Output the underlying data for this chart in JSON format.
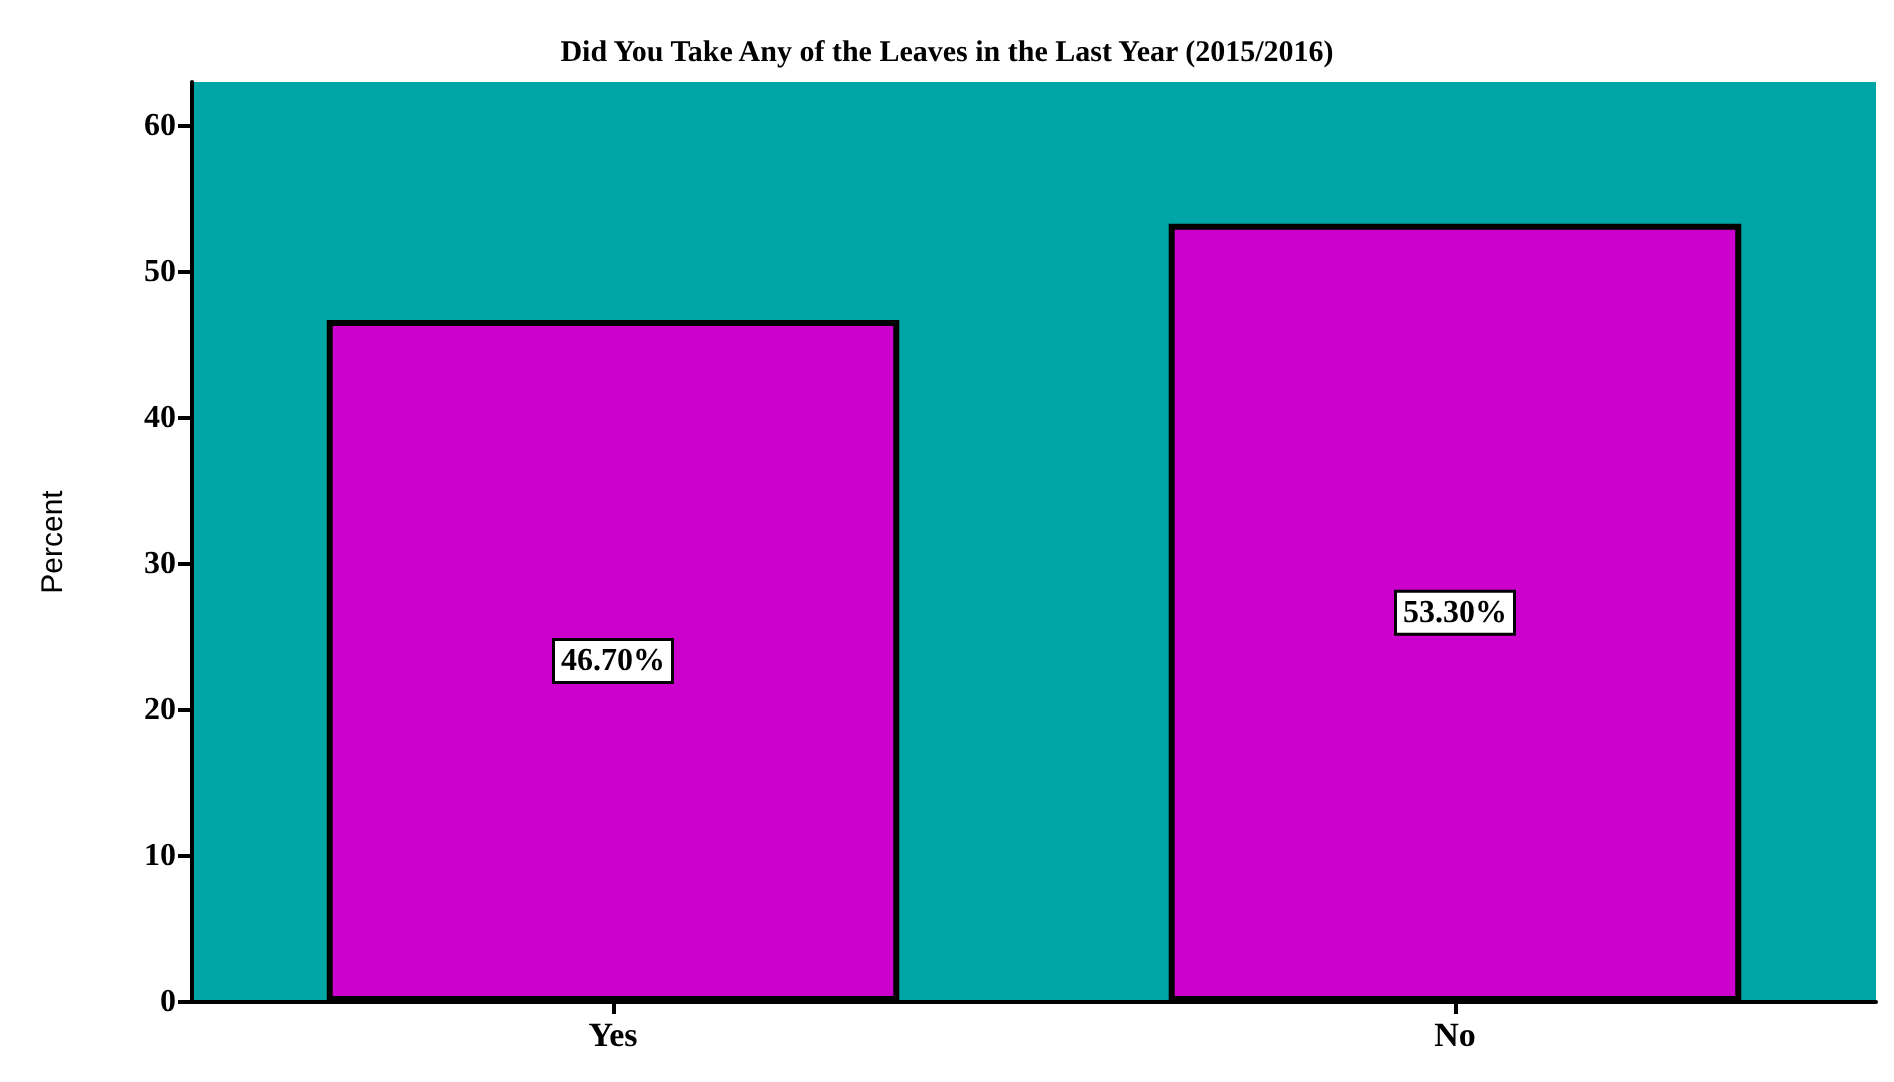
{
  "chart_data": {
    "type": "bar",
    "title": "Did You Take Any of the Leaves in the Last Year (2015/2016)",
    "ylabel": "Percent",
    "categories": [
      "Yes",
      "No"
    ],
    "values": [
      46.7,
      53.3
    ],
    "value_labels": [
      "46.70%",
      "53.30%"
    ],
    "color": "#cc00cc",
    "ylim": [
      0,
      63
    ],
    "yticks": [
      0,
      10,
      20,
      30,
      40,
      50,
      60
    ]
  }
}
